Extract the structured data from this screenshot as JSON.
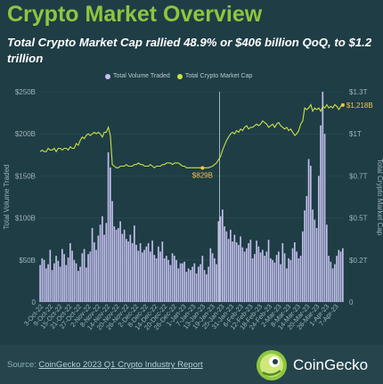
{
  "header": {
    "title": "Crypto Market Overview",
    "subtitle": "Total Crypto Market Cap rallied 48.9% or $406 billion QoQ, to $1.2 trillion"
  },
  "footer": {
    "source_label": "Source:",
    "source_link": "CoinGecko 2023 Q1 Crypto Industry Report",
    "brand": "CoinGecko"
  },
  "colors": {
    "background": "#1f3d45",
    "title": "#8dc63f",
    "volume_bars": "#c4c0ee",
    "market_cap_line": "#c9e04a",
    "annotation": "#f5c842"
  },
  "chart_data": {
    "type": "bar+line",
    "title": "",
    "legend": [
      "Total Volume Traded",
      "Total Crypto Market Cap"
    ],
    "legend_position": "top",
    "ylabel_left": "Total Volume Traded",
    "ylabel_right": "Total Crypto Market Cap",
    "yticks_left": [
      "0",
      "$50B",
      "$100B",
      "$150B",
      "$200B",
      "$250B"
    ],
    "yticks_right": [
      "0",
      "$0.2T",
      "$0.5T",
      "$0.7T",
      "$1T",
      "$1.3T"
    ],
    "ylim_left": [
      0,
      250
    ],
    "ylim_right": [
      0,
      1.3
    ],
    "x_tick_labels": [
      "3-Oct-22",
      "9-Oct-22",
      "15-Oct-22",
      "21-Oct-22",
      "27-Oct-22",
      "2-Nov-22",
      "8-Nov-22",
      "14-Nov-22",
      "20-Nov-22",
      "26-Nov-22",
      "2-Dec-22",
      "8-Dec-22",
      "14-Dec-22",
      "20-Dec-22",
      "26-Dec-22",
      "1-Jan-23",
      "7-Jan-23",
      "13-Jan-23",
      "19-Jan-23",
      "25-Jan-23",
      "31-Jan-23",
      "6-Feb-23",
      "12-Feb-23",
      "18-Feb-23",
      "24-Feb-23",
      "2-Mar-23",
      "8-Mar-23",
      "14-Mar-23",
      "20-Mar-23",
      "26-Mar-23",
      "1-Apr-23",
      "7-Apr-23"
    ],
    "annotations": [
      {
        "label": "$829B",
        "date": "26-Dec-22",
        "value_trillion": 0.829
      },
      {
        "label": "$1,218B",
        "date": "7-Apr-23",
        "value_trillion": 1.218
      }
    ],
    "divider_date": "1-Jan-23",
    "series": [
      {
        "name": "Total Volume Traded",
        "unit": "billion USD",
        "values": [
          44,
          52,
          50,
          40,
          45,
          62,
          38,
          46,
          55,
          49,
          42,
          63,
          57,
          44,
          53,
          70,
          61,
          50,
          46,
          37,
          42,
          58,
          63,
          41,
          57,
          60,
          88,
          71,
          62,
          79,
          92,
          102,
          80,
          94,
          178,
          160,
          120,
          90,
          86,
          88,
          96,
          81,
          86,
          75,
          72,
          80,
          70,
          91,
          68,
          61,
          70,
          59,
          62,
          66,
          70,
          60,
          73,
          56,
          52,
          66,
          60,
          72,
          52,
          55,
          50,
          44,
          58,
          55,
          50,
          40,
          46,
          46,
          48,
          36,
          40,
          38,
          42,
          46,
          34,
          42,
          45,
          55,
          38,
          33,
          42,
          64,
          58,
          52,
          45,
          96,
          102,
          110,
          90,
          84,
          75,
          86,
          72,
          80,
          71,
          68,
          78,
          65,
          60,
          64,
          70,
          74,
          52,
          57,
          73,
          66,
          59,
          62,
          55,
          60,
          74,
          52,
          50,
          47,
          56,
          60,
          45,
          70,
          58,
          40,
          52,
          50,
          64,
          71,
          60,
          52,
          55,
          84,
          109,
          126,
          170,
          162,
          110,
          98,
          88,
          150,
          210,
          250,
          200,
          92,
          55,
          48,
          40,
          45,
          55,
          62,
          60,
          64
        ]
      },
      {
        "name": "Total Crypto Market Cap",
        "unit": "trillion USD",
        "values": [
          0.93,
          0.94,
          0.93,
          0.93,
          0.95,
          0.94,
          0.94,
          0.95,
          0.93,
          0.95,
          0.95,
          0.94,
          0.95,
          0.95,
          0.94,
          0.96,
          0.95,
          0.95,
          0.98,
          0.97,
          1.0,
          1.02,
          1.01,
          1.03,
          1.04,
          1.03,
          1.04,
          1.05,
          1.04,
          1.05,
          1.04,
          1.02,
          1.05,
          1.05,
          1.08,
          1.03,
          0.85,
          0.84,
          0.83,
          0.83,
          0.84,
          0.84,
          0.84,
          0.85,
          0.84,
          0.84,
          0.84,
          0.85,
          0.85,
          0.86,
          0.85,
          0.85,
          0.84,
          0.84,
          0.84,
          0.85,
          0.84,
          0.83,
          0.84,
          0.84,
          0.84,
          0.85,
          0.85,
          0.86,
          0.86,
          0.86,
          0.85,
          0.86,
          0.86,
          0.86,
          0.85,
          0.84,
          0.84,
          0.83,
          0.83,
          0.83,
          0.83,
          0.83,
          0.83,
          0.83,
          0.83,
          0.829,
          0.83,
          0.83,
          0.83,
          0.835,
          0.84,
          0.85,
          0.86,
          0.88,
          0.9,
          0.94,
          0.97,
          1.0,
          1.02,
          1.04,
          1.05,
          1.04,
          1.06,
          1.05,
          1.07,
          1.06,
          1.08,
          1.09,
          1.07,
          1.08,
          1.08,
          1.09,
          1.1,
          1.09,
          1.1,
          1.12,
          1.11,
          1.1,
          1.08,
          1.09,
          1.1,
          1.08,
          1.1,
          1.11,
          1.09,
          1.08,
          1.07,
          1.08,
          1.06,
          1.07,
          1.05,
          1.03,
          1.04,
          1.06,
          1.1,
          1.12,
          1.2,
          1.19,
          1.2,
          1.22,
          1.18,
          1.2,
          1.19,
          1.2,
          1.18,
          1.21,
          1.2,
          1.22,
          1.2,
          1.21,
          1.2,
          1.22,
          1.21,
          1.19,
          1.21,
          1.218
        ]
      }
    ]
  }
}
